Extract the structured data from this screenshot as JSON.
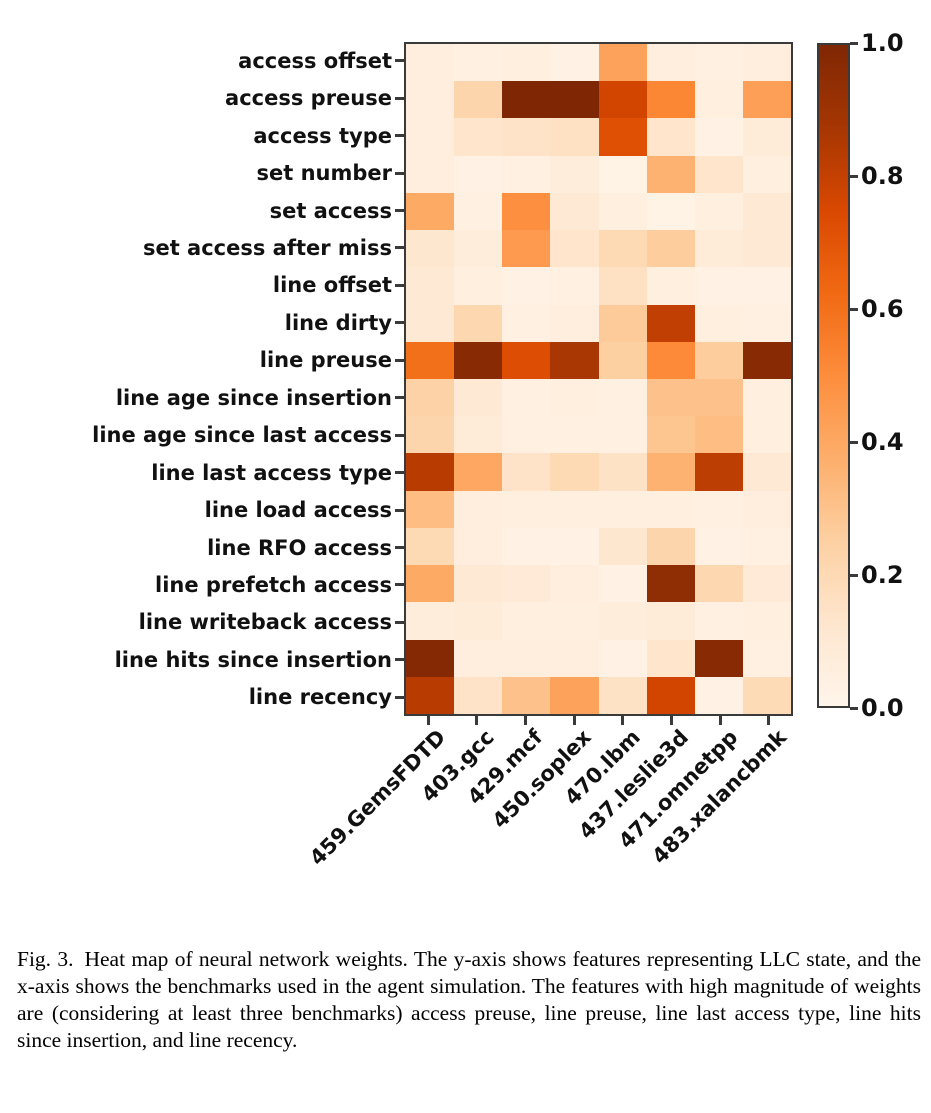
{
  "figure": {
    "caption_label": "Fig. 3.",
    "caption_text": "Heat map of neural network weights. The y-axis shows features representing LLC state, and the x-axis shows the benchmarks used in the agent simulation. The features with high magnitude of weights are (considering at least three benchmarks) access preuse, line preuse, line last access type, line hits since insertion, and line recency."
  },
  "chart_data": {
    "type": "heatmap",
    "title": "",
    "xlabel": "",
    "ylabel": "",
    "x_categories": [
      "459.GemsFDTD",
      "403.gcc",
      "429.mcf",
      "450.soplex",
      "470.lbm",
      "437.leslie3d",
      "471.omnetpp",
      "483.xalancbmk"
    ],
    "y_categories": [
      "access offset",
      "access preuse",
      "access type",
      "set number",
      "set access",
      "set access after miss",
      "line offset",
      "line dirty",
      "line preuse",
      "line age since insertion",
      "line age since last access",
      "line last access type",
      "line load access",
      "line RFO access",
      "line prefetch access",
      "line writeback access",
      "line hits since insertion",
      "line recency"
    ],
    "values": [
      [
        0.06,
        0.04,
        0.05,
        0.03,
        0.42,
        0.06,
        0.04,
        0.06
      ],
      [
        0.06,
        0.22,
        1.0,
        1.0,
        0.77,
        0.52,
        0.05,
        0.43
      ],
      [
        0.06,
        0.13,
        0.14,
        0.16,
        0.72,
        0.13,
        0.03,
        0.08
      ],
      [
        0.06,
        0.03,
        0.04,
        0.07,
        0.02,
        0.36,
        0.13,
        0.05
      ],
      [
        0.39,
        0.04,
        0.49,
        0.1,
        0.05,
        0.02,
        0.05,
        0.1
      ],
      [
        0.12,
        0.07,
        0.45,
        0.13,
        0.2,
        0.26,
        0.08,
        0.1
      ],
      [
        0.1,
        0.05,
        0.03,
        0.04,
        0.16,
        0.05,
        0.03,
        0.03
      ],
      [
        0.1,
        0.21,
        0.04,
        0.06,
        0.27,
        0.81,
        0.05,
        0.04
      ],
      [
        0.6,
        0.97,
        0.73,
        0.87,
        0.25,
        0.51,
        0.26,
        0.97
      ],
      [
        0.24,
        0.1,
        0.04,
        0.05,
        0.04,
        0.3,
        0.3,
        0.05
      ],
      [
        0.22,
        0.08,
        0.04,
        0.04,
        0.04,
        0.29,
        0.32,
        0.05
      ],
      [
        0.83,
        0.4,
        0.14,
        0.2,
        0.15,
        0.36,
        0.82,
        0.1
      ],
      [
        0.32,
        0.06,
        0.05,
        0.05,
        0.05,
        0.05,
        0.04,
        0.06
      ],
      [
        0.2,
        0.06,
        0.03,
        0.03,
        0.12,
        0.22,
        0.03,
        0.04
      ],
      [
        0.39,
        0.1,
        0.09,
        0.06,
        0.03,
        0.95,
        0.21,
        0.09
      ],
      [
        0.07,
        0.08,
        0.05,
        0.05,
        0.07,
        0.08,
        0.04,
        0.05
      ],
      [
        0.98,
        0.06,
        0.06,
        0.06,
        0.03,
        0.13,
        0.97,
        0.04
      ],
      [
        0.83,
        0.14,
        0.3,
        0.42,
        0.15,
        0.77,
        0.03,
        0.19
      ]
    ],
    "vmin": 0.0,
    "vmax": 1.0,
    "grid": false,
    "colormap": {
      "name": "Oranges",
      "stops": [
        [
          0.0,
          "#fff5eb"
        ],
        [
          0.125,
          "#fee6ce"
        ],
        [
          0.25,
          "#fdd0a2"
        ],
        [
          0.375,
          "#fdae6b"
        ],
        [
          0.5,
          "#fd8d3c"
        ],
        [
          0.625,
          "#f16913"
        ],
        [
          0.75,
          "#d94801"
        ],
        [
          0.875,
          "#a63603"
        ],
        [
          1.0,
          "#7f2704"
        ]
      ]
    },
    "colorbar": {
      "position": "right",
      "tick_labels": [
        "1.0",
        "0.8",
        "0.6",
        "0.4",
        "0.2",
        "0.0"
      ]
    },
    "axis_color": "#3a3a3a"
  }
}
